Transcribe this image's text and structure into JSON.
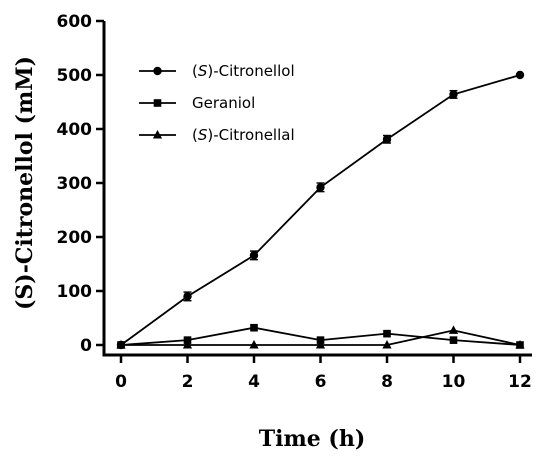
{
  "chart_data": {
    "type": "line",
    "title": "",
    "xlabel": "Time (h)",
    "ylabel": "(S)-Citronellol (mM)",
    "xlim": [
      0,
      12
    ],
    "ylim": [
      0,
      600
    ],
    "xticks": [
      0,
      2,
      4,
      6,
      8,
      10,
      12
    ],
    "yticks": [
      0,
      100,
      200,
      300,
      400,
      500,
      600
    ],
    "grid": false,
    "legend_position": "top-left",
    "series": [
      {
        "name_prefix": "(",
        "name_italic": "S",
        "name_suffix": ")-Citronellol",
        "marker": "circle",
        "color": "#000000",
        "x": [
          0,
          2,
          4,
          6,
          8,
          10,
          12
        ],
        "y": [
          0,
          90,
          166,
          292,
          381,
          464,
          500
        ],
        "error": [
          0,
          8,
          8,
          8,
          7,
          7,
          0
        ]
      },
      {
        "name_prefix": "Geraniol",
        "name_italic": "",
        "name_suffix": "",
        "marker": "square",
        "color": "#000000",
        "x": [
          0,
          2,
          4,
          6,
          8,
          10,
          12
        ],
        "y": [
          0,
          9,
          32,
          9,
          21,
          9,
          0
        ],
        "error": [
          0,
          0,
          0,
          0,
          0,
          0,
          0
        ]
      },
      {
        "name_prefix": "(",
        "name_italic": "S",
        "name_suffix": ")-Citronellal",
        "marker": "triangle",
        "color": "#000000",
        "x": [
          0,
          2,
          4,
          6,
          8,
          10,
          12
        ],
        "y": [
          0,
          0,
          0,
          0,
          0,
          27,
          0
        ],
        "error": [
          0,
          0,
          0,
          0,
          0,
          0,
          0
        ]
      }
    ]
  }
}
